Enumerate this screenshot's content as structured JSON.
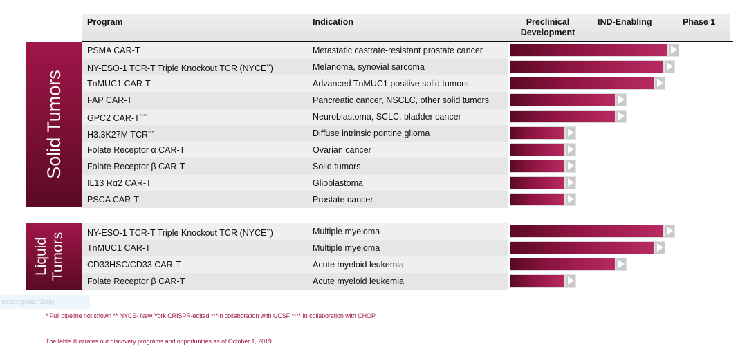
{
  "header": {
    "program": "Program",
    "indication": "Indication",
    "stages": [
      "Preclinical Development",
      "IND-Enabling",
      "Phase 1"
    ]
  },
  "colors": {
    "accent": "#8e1442",
    "accent_dark": "#5a0a24",
    "footnote": "#a01649"
  },
  "chart_data": {
    "type": "bar",
    "orientation": "horizontal",
    "stages": [
      "Preclinical Development",
      "IND-Enabling",
      "Phase 1"
    ],
    "groups": [
      {
        "name": "Solid Tumors",
        "rows": [
          {
            "program": "PSMA  CAR-T",
            "sup": "",
            "indication": "Metastatic castrate-resistant prostate cancer",
            "progress": 0.84
          },
          {
            "program": "NY-ESO-1 TCR-T Triple Knockout TCR (NYCE",
            "sup": "**",
            "suffix": ")",
            "indication": "Melanoma, synovial sarcoma",
            "progress": 0.82
          },
          {
            "program": "TnMUC1 CAR-T",
            "sup": "",
            "indication": "Advanced TnMUC1 positive solid tumors",
            "progress": 0.77
          },
          {
            "program": "FAP CAR-T",
            "sup": "",
            "indication": "Pancreatic cancer, NSCLC, other solid tumors",
            "progress": 0.58
          },
          {
            "program": "GPC2 CAR-T",
            "sup": "****",
            "indication": "Neuroblastoma, SCLC, bladder cancer",
            "progress": 0.58
          },
          {
            "program": "H3.3K27M TCR",
            "sup": "***",
            "indication": "Diffuse intrinsic pontine glioma",
            "progress": 0.33
          },
          {
            "program": "Folate Receptor α CAR-T",
            "sup": "",
            "indication": "Ovarian cancer",
            "progress": 0.33
          },
          {
            "program": "Folate Receptor β CAR-T",
            "sup": "",
            "indication": "Solid tumors",
            "progress": 0.33
          },
          {
            "program": "IL13 Rα2 CAR-T",
            "sup": "",
            "indication": "Glioblastoma",
            "progress": 0.33
          },
          {
            "program": "PSCA CAR-T",
            "sup": "",
            "indication": "Prostate cancer",
            "progress": 0.33
          }
        ]
      },
      {
        "name": "Liquid Tumors",
        "rows": [
          {
            "program": "NY-ESO-1 TCR-T Triple Knockout TCR (NYCE",
            "sup": "**",
            "suffix": ")",
            "indication": "Multiple myeloma",
            "progress": 0.82
          },
          {
            "program": "TnMUC1 CAR-T",
            "sup": "",
            "indication": "Multiple myeloma",
            "progress": 0.77
          },
          {
            "program": "CD33HSC/CD33 CAR-T",
            "sup": "",
            "indication": "Acute myeloid leukemia",
            "progress": 0.58
          },
          {
            "program": "Folate Receptor β CAR-T",
            "sup": "",
            "indication": "Acute myeloid leukemia",
            "progress": 0.33
          }
        ]
      }
    ]
  },
  "sections": {
    "solid_label": "Solid Tumors",
    "liquid_line1": "Liquid",
    "liquid_line2": "Tumors"
  },
  "snip_label": "ectangular Snip",
  "footnotes": {
    "line1": "* Full pipeline not shown   ** NYCE- New York CRISPR-edited   ***In collaboration with UCSF   **** In collaboration with CHOP",
    "line2": "The table illustrates our discovery programs and opportunities as of October 1, 2019"
  }
}
